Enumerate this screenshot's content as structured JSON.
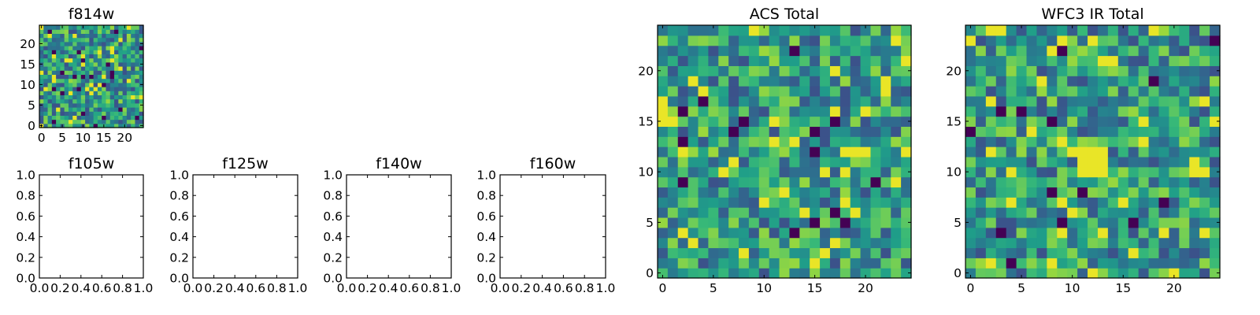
{
  "chart_data": [
    {
      "type": "heatmap",
      "title": "f814w",
      "grid_size": [
        25,
        25
      ],
      "colormap": "viridis",
      "xticks": [
        "0",
        "5",
        "10",
        "15",
        "20"
      ],
      "yticks": [
        "0",
        "5",
        "10",
        "15",
        "20"
      ],
      "xlim": [
        -0.5,
        24.5
      ],
      "ylim": [
        -0.5,
        24.5
      ],
      "seed": 814,
      "values": [],
      "empty": false
    },
    {
      "type": "heatmap",
      "title": "f105w",
      "xticks": [
        "0.0",
        "0.2",
        "0.4",
        "0.6",
        "0.8",
        "1.0"
      ],
      "yticks": [
        "0.0",
        "0.2",
        "0.4",
        "0.6",
        "0.8",
        "1.0"
      ],
      "xlim": [
        0,
        1
      ],
      "ylim": [
        0,
        1
      ],
      "values": [],
      "empty": true
    },
    {
      "type": "heatmap",
      "title": "f125w",
      "xticks": [
        "0.0",
        "0.2",
        "0.4",
        "0.6",
        "0.8",
        "1.0"
      ],
      "yticks": [
        "0.0",
        "0.2",
        "0.4",
        "0.6",
        "0.8",
        "1.0"
      ],
      "xlim": [
        0,
        1
      ],
      "ylim": [
        0,
        1
      ],
      "values": [],
      "empty": true
    },
    {
      "type": "heatmap",
      "title": "f140w",
      "xticks": [
        "0.0",
        "0.2",
        "0.4",
        "0.6",
        "0.8",
        "1.0"
      ],
      "yticks": [
        "0.0",
        "0.2",
        "0.4",
        "0.6",
        "0.8",
        "1.0"
      ],
      "xlim": [
        0,
        1
      ],
      "ylim": [
        0,
        1
      ],
      "values": [],
      "empty": true
    },
    {
      "type": "heatmap",
      "title": "f160w",
      "xticks": [
        "0.0",
        "0.2",
        "0.4",
        "0.6",
        "0.8",
        "1.0"
      ],
      "yticks": [
        "0.0",
        "0.2",
        "0.4",
        "0.6",
        "0.8",
        "1.0"
      ],
      "xlim": [
        0,
        1
      ],
      "ylim": [
        0,
        1
      ],
      "values": [],
      "empty": true
    },
    {
      "type": "heatmap",
      "title": "ACS Total",
      "grid_size": [
        25,
        25
      ],
      "colormap": "viridis",
      "xticks": [
        "0",
        "5",
        "10",
        "15",
        "20"
      ],
      "yticks": [
        "0",
        "5",
        "10",
        "15",
        "20"
      ],
      "xlim": [
        -0.5,
        24.5
      ],
      "ylim": [
        -0.5,
        24.5
      ],
      "seed": 1337,
      "values": [],
      "empty": false
    },
    {
      "type": "heatmap",
      "title": "WFC3 IR Total",
      "grid_size": [
        25,
        25
      ],
      "colormap": "viridis",
      "xticks": [
        "0",
        "5",
        "10",
        "15",
        "20"
      ],
      "yticks": [
        "0",
        "5",
        "10",
        "15",
        "20"
      ],
      "xlim": [
        -0.5,
        24.5
      ],
      "ylim": [
        -0.5,
        24.5
      ],
      "seed": 2718,
      "values": [],
      "empty": false,
      "bright_patch": {
        "x": [
          11,
          13
        ],
        "y": [
          10,
          12
        ],
        "level": 0.97
      }
    }
  ]
}
